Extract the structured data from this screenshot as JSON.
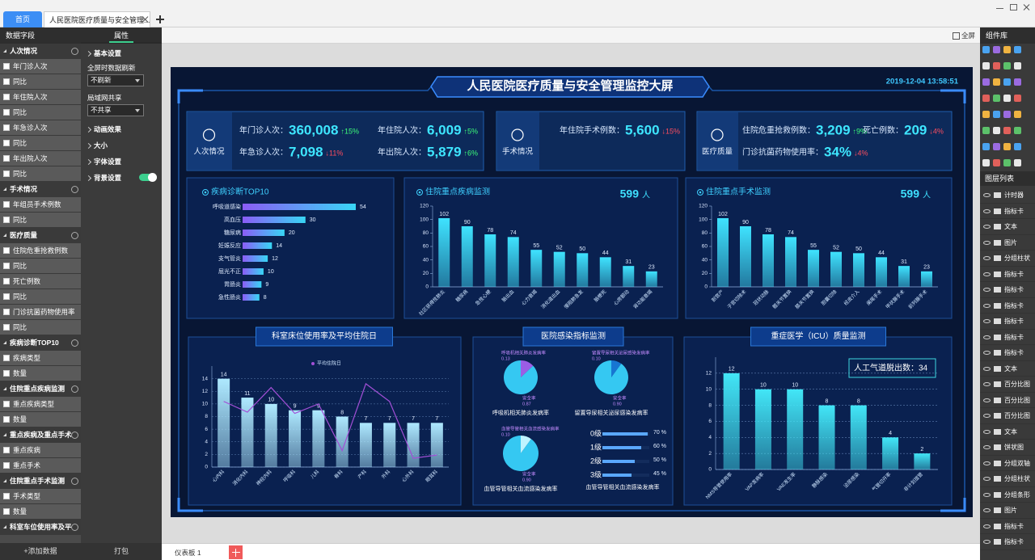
{
  "tabs": [
    "首页",
    "人民医院医疗质量与安全管理..."
  ],
  "toolbar": {
    "fullscreen": "全屏"
  },
  "fields_panel": {
    "title": "数据字段",
    "add": "+添加数据",
    "groups": [
      {
        "name": "人次情况",
        "fields": [
          "年门诊人次",
          "同比",
          "年住院人次",
          "同比",
          "年急诊人次",
          "同比",
          "年出院人次",
          "同比"
        ]
      },
      {
        "name": "手术情况",
        "fields": [
          "年组员手术例数",
          "同比"
        ]
      },
      {
        "name": "医疗质量",
        "fields": [
          "住院危重抢救例数",
          "同比",
          "死亡例数",
          "同比",
          "门诊抗菌药物使用率",
          "同比"
        ]
      },
      {
        "name": "疾病诊断TOP10",
        "fields": [
          "疾病类型",
          "数量"
        ]
      },
      {
        "name": "住院重点疾病监测",
        "fields": [
          "重点疾病类型",
          "数量"
        ]
      },
      {
        "name": "重点疾病及重点手术",
        "fields": [
          "重点疾病",
          "重点手术"
        ]
      },
      {
        "name": "住院重点手术监测",
        "fields": [
          "手术类型",
          "数量"
        ]
      },
      {
        "name": "科室车位使用率及平",
        "fields": []
      }
    ]
  },
  "props_panel": {
    "title": "属性",
    "section": "基本设置",
    "refresh_label": "全屏时数据刷新",
    "refresh_value": "不刷新",
    "share_label": "局域网共享",
    "share_value": "不共享",
    "sections": [
      "动画效果",
      "大小",
      "字体设置",
      "背景设置"
    ],
    "pack": "打包"
  },
  "components_panel": {
    "title": "组件库",
    "layers_title": "图层列表",
    "layers": [
      "计时器",
      "指标卡",
      "文本",
      "图片",
      "分组柱状",
      "指标卡",
      "指标卡",
      "指标卡",
      "指标卡",
      "指标卡",
      "指标卡",
      "文本",
      "百分比图",
      "百分比图",
      "百分比图",
      "文本",
      "饼状图",
      "分组双轴",
      "分组柱状",
      "分组条形",
      "图片",
      "指标卡",
      "指标卡"
    ]
  },
  "sheet_tabs": [
    "仪表板 1"
  ],
  "dashboard": {
    "title": "人民医院医疗质量与安全管理监控大屏",
    "time": "2019-12-04 13:58:51",
    "kpis": [
      {
        "name": "人次情况",
        "items": [
          {
            "label": "年门诊人次：",
            "value": "360,008",
            "change": "↑15%",
            "change_color": "#3dff7a"
          },
          {
            "label": "年住院人次：",
            "value": "6,009",
            "change": "↑5%",
            "change_color": "#3dff7a"
          },
          {
            "label": "年急诊人次：",
            "value": "7,098",
            "change": "↓11%",
            "change_color": "#ff4d5e"
          },
          {
            "label": "年出院人次：",
            "value": "5,879",
            "change": "↑6%",
            "change_color": "#3dff7a"
          }
        ]
      },
      {
        "name": "手术情况",
        "items": [
          {
            "label": "年住院手术例数：",
            "value": "5,600",
            "change": "↓15%",
            "change_color": "#ff4d5e"
          }
        ]
      },
      {
        "name": "医疗质量",
        "items": [
          {
            "label": "住院危重抢救例数：",
            "value": "3,209",
            "change": "↑9%",
            "change_color": "#3dff7a"
          },
          {
            "label": "死亡例数：",
            "value": "209",
            "change": "↓4%",
            "change_color": "#ff4d5e"
          },
          {
            "label": "门诊抗菌药物使用率：",
            "value": "34%",
            "change": "↓4%",
            "change_color": "#ff4d5e"
          }
        ]
      }
    ]
  },
  "chart_data": [
    {
      "type": "hbar",
      "title": "疾病诊断TOP10",
      "categories": [
        "呼吸道感染",
        "高血压",
        "糖尿病",
        "妊娠反应",
        "支气管炎",
        "屈光不正",
        "胃肠炎",
        "急性肠炎"
      ],
      "values": [
        54,
        30,
        20,
        14,
        12,
        10,
        9,
        8
      ]
    },
    {
      "type": "bar",
      "title": "住院重点疾病监测",
      "total": "599",
      "total_unit": "人",
      "categories": [
        "社区获得性肺炎",
        "糖尿病",
        "急性心梗",
        "脑出血",
        "心力衰竭",
        "消化道出血",
        "慢阻肺急发",
        "脑梗死",
        "心房颤动",
        "肾功能衰竭"
      ],
      "values": [
        102,
        90,
        78,
        74,
        55,
        52,
        50,
        44,
        31,
        23
      ],
      "ylim": [
        0,
        120
      ],
      "yticks": [
        0,
        20,
        40,
        60,
        80,
        100,
        120
      ],
      "color": "#3fe3ff",
      "grid": false
    },
    {
      "type": "bar",
      "title": "住院重点手术监测",
      "total": "599",
      "total_unit": "人",
      "categories": [
        "剖宫产",
        "子宫切除术",
        "冠状动脉",
        "髋关节置换",
        "膝关节置换",
        "胆囊切除",
        "经皮介入",
        "阑尾手术",
        "甲状腺手术",
        "前列腺手术"
      ],
      "values": [
        102,
        90,
        78,
        74,
        55,
        52,
        50,
        44,
        31,
        23
      ],
      "ylim": [
        0,
        120
      ],
      "yticks": [
        0,
        20,
        40,
        60,
        80,
        100,
        120
      ],
      "color": "#3fe3ff",
      "grid": false
    },
    {
      "type": "bar_line",
      "title": "科室床位使用率及平均住院日",
      "categories": [
        "心内科",
        "消化内科",
        "神经内科",
        "呼吸科",
        "儿科",
        "骨科",
        "产科",
        "外科",
        "心外科",
        "眼耳科"
      ],
      "values": [
        14,
        11,
        10,
        9,
        9,
        8,
        7,
        7,
        7,
        7
      ],
      "line": {
        "name": "平均住院日",
        "color": "#a24fd6",
        "values": [
          10.4,
          8.7,
          12.6,
          8.5,
          10,
          2.6,
          13.2,
          10.4,
          1.4,
          1.9
        ]
      },
      "ylim": [
        0,
        16
      ],
      "yticks": [
        0,
        2,
        4,
        6,
        8,
        10,
        12,
        14
      ],
      "color": "#aee9ff",
      "grid": true
    },
    {
      "type": "infection",
      "title": "医院感染指标监测",
      "pies": [
        {
          "caption": "呼吸机相关肺炎发病率",
          "slices": [
            {
              "name": "呼吸机相关肺炎发病率",
              "value": 0.13,
              "color": "#9b5de5"
            },
            {
              "name": "安全率",
              "value": 0.87,
              "color": "#35c8f2"
            }
          ]
        },
        {
          "caption": "留置导尿相关泌尿感染发病率",
          "slices": [
            {
              "name": "留置导尿相关泌尿感染发病率",
              "value": 0.1,
              "value_label": "0.10",
              "color": "#1776d2"
            },
            {
              "name": "安全率",
              "value": 0.9,
              "value_label": "0.90",
              "color": "#35c8f2"
            }
          ]
        },
        {
          "caption": "血管导管相关血流感染发病率",
          "slices": [
            {
              "name": "血管导管相关血流感染发病率",
              "value": 0.1,
              "value_label": "0.10",
              "color": "#bff3ff"
            },
            {
              "name": "安全率",
              "value": 0.9,
              "value_label": "0.90",
              "color": "#35c8f2"
            }
          ]
        }
      ],
      "progress": {
        "caption": "血管导管相关血流感染发病率",
        "categories": [
          "0级",
          "1级",
          "2级",
          "3级"
        ],
        "values": [
          70,
          60,
          50,
          45
        ],
        "value_labels": [
          "70 %",
          "60 %",
          "50 %",
          "45 %"
        ],
        "color": "#5aa8ff"
      }
    },
    {
      "type": "bar",
      "title": "重症医学（ICU）质量监测",
      "annotation": "人工气道脱出数：34",
      "categories": [
        "NMS导管使用率",
        "VAP发病率",
        "VAE发生率",
        "静脉感染",
        "泌尿感染",
        "气管切开率",
        "非计划拔管"
      ],
      "values": [
        12,
        10,
        10,
        8,
        8,
        4,
        2
      ],
      "ylim": [
        0,
        14
      ],
      "yticks": [
        0,
        2,
        4,
        6,
        8,
        10,
        12
      ],
      "color": "#42e6f7",
      "grid": true
    }
  ]
}
